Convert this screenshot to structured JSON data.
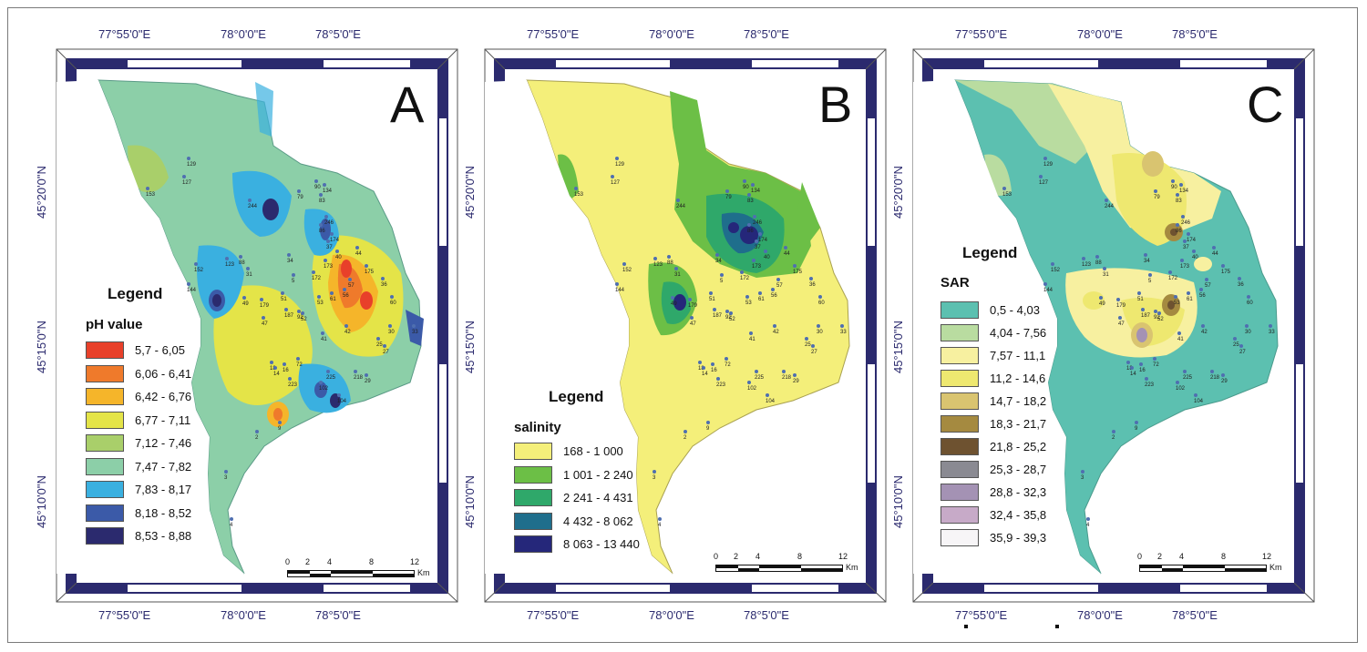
{
  "figure": {
    "top_coords": [
      "77°55'0\"E",
      "78°0'0\"E",
      "78°5'0\"E"
    ],
    "side_coords": [
      "45°20'0\"N",
      "45°15'0\"N",
      "45°10'0\"N"
    ],
    "scale_ticks": [
      "0",
      "2",
      "4",
      "8",
      "12"
    ],
    "scale_unit": "Km"
  },
  "panels": [
    {
      "letter": "A",
      "legend_title": "Legend",
      "legend_subtitle": "pH value",
      "classes": [
        {
          "label": "5,7 - 6,05",
          "color": "#e8402a"
        },
        {
          "label": "6,06 - 6,41",
          "color": "#ef7a2b"
        },
        {
          "label": "6,42 - 6,76",
          "color": "#f5b52a"
        },
        {
          "label": "6,77 - 7,11",
          "color": "#e4e448"
        },
        {
          "label": "7,12 - 7,46",
          "color": "#a9cf6a"
        },
        {
          "label": "7,47 - 7,82",
          "color": "#8ccfa8"
        },
        {
          "label": "7,83 - 8,17",
          "color": "#3ab0e0"
        },
        {
          "label": "8,18 - 8,52",
          "color": "#3b5aa8"
        },
        {
          "label": "8,53 - 8,88",
          "color": "#2b2a6e"
        }
      ]
    },
    {
      "letter": "B",
      "legend_title": "Legend",
      "legend_subtitle": "salinity",
      "classes": [
        {
          "label": "168 - 1 000",
          "color": "#f4ef7a"
        },
        {
          "label": "1 001 - 2 240",
          "color": "#6cbf46"
        },
        {
          "label": "2 241 - 4 431",
          "color": "#2fa86a"
        },
        {
          "label": "4 432 - 8 062",
          "color": "#1f6e8c"
        },
        {
          "label": "8 063 - 13 440",
          "color": "#25277a"
        }
      ]
    },
    {
      "letter": "C",
      "legend_title": "Legend",
      "legend_subtitle": "SAR",
      "classes": [
        {
          "label": "0,5 - 4,03",
          "color": "#5cc0b0"
        },
        {
          "label": "4,04 - 7,56",
          "color": "#b9dca0"
        },
        {
          "label": "7,57 - 11,1",
          "color": "#f7f0a0"
        },
        {
          "label": "11,2 - 14,6",
          "color": "#eee870"
        },
        {
          "label": "14,7 - 18,2",
          "color": "#d9c470"
        },
        {
          "label": "18,3 - 21,7",
          "color": "#a58a40"
        },
        {
          "label": "21,8 - 25,2",
          "color": "#6e5230"
        },
        {
          "label": "25,3 - 28,7",
          "color": "#8a8a92"
        },
        {
          "label": "28,8 - 32,3",
          "color": "#a492b4"
        },
        {
          "label": "32,4 - 35,8",
          "color": "#c7aac8"
        },
        {
          "label": "35,9 - 39,3",
          "color": "#f7f5f7"
        }
      ]
    }
  ],
  "wells": [
    "129",
    "127",
    "153",
    "79",
    "90",
    "134",
    "83",
    "244",
    "246",
    "86",
    "174",
    "37",
    "34",
    "40",
    "173",
    "44",
    "175",
    "172",
    "123",
    "88",
    "31",
    "152",
    "144",
    "51",
    "179",
    "49",
    "187",
    "92",
    "53",
    "5",
    "61",
    "52",
    "30",
    "33",
    "47",
    "42",
    "41",
    "60",
    "56",
    "36",
    "25",
    "27",
    "57",
    "72",
    "18",
    "14",
    "16",
    "223",
    "225",
    "218",
    "29",
    "102",
    "104",
    "9",
    "2",
    "3",
    "4"
  ]
}
